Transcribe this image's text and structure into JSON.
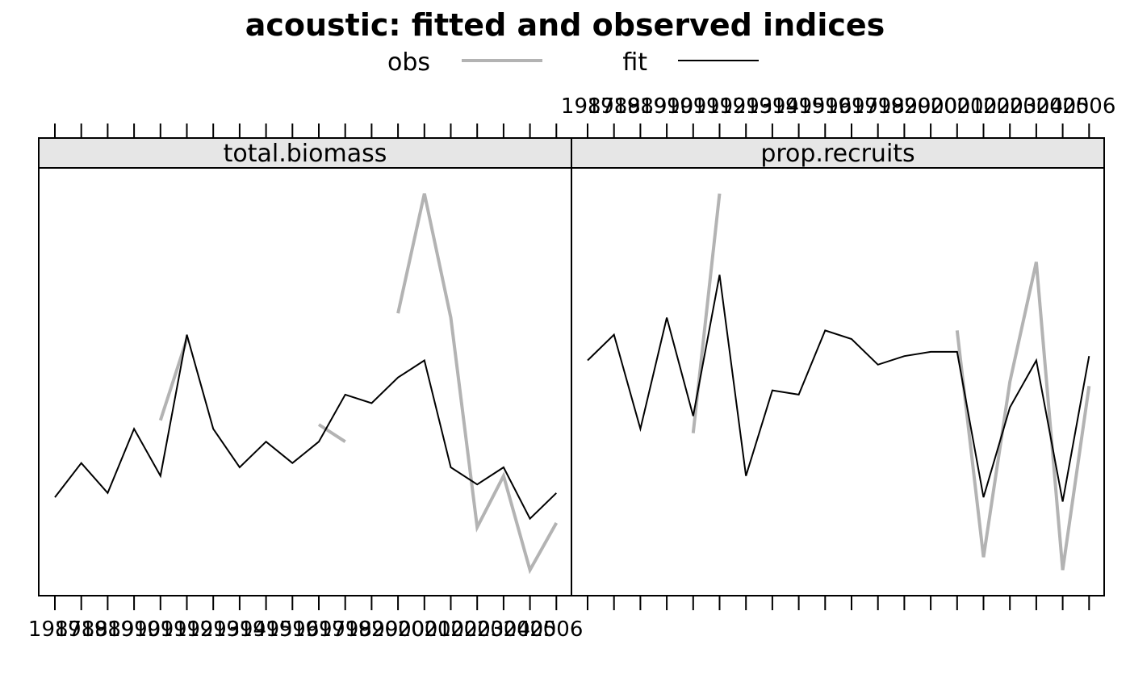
{
  "chart_data": {
    "type": "line",
    "title": "acoustic: fitted and observed indices",
    "legend": {
      "placement": "top",
      "entries": [
        {
          "label": "obs",
          "color": "#b3b3b3"
        },
        {
          "label": "fit",
          "color": "#000000"
        }
      ]
    },
    "x": [
      1987,
      1988,
      1989,
      1990,
      1991,
      1992,
      1993,
      1994,
      1995,
      1996,
      1997,
      1998,
      1999,
      2000,
      2001,
      2002,
      2003,
      2004,
      2005,
      2006
    ],
    "x_tick_labels": [
      "1987",
      "1988",
      "1989",
      "1990",
      "1991",
      "1992",
      "1993",
      "1994",
      "1995",
      "1996",
      "1997",
      "1998",
      "1999",
      "2000",
      "2001",
      "2002",
      "2003",
      "2004",
      "2005",
      "2006"
    ],
    "grid": false,
    "panels": [
      {
        "strip": "total.biomass",
        "ylim": [
          0,
          1
        ],
        "series": [
          {
            "name": "fit",
            "color": "#000000",
            "values": [
              0.23,
              0.31,
              0.24,
              0.39,
              0.28,
              0.61,
              0.39,
              0.3,
              0.36,
              0.31,
              0.36,
              0.47,
              0.45,
              0.51,
              0.55,
              0.3,
              0.26,
              0.3,
              0.18,
              0.24
            ]
          },
          {
            "name": "obs",
            "color": "#b3b3b3",
            "values": [
              null,
              null,
              null,
              null,
              0.41,
              0.6,
              null,
              null,
              null,
              null,
              0.4,
              0.36,
              null,
              0.66,
              0.94,
              0.65,
              0.16,
              0.28,
              0.06,
              0.17
            ]
          }
        ]
      },
      {
        "strip": "prop.recruits",
        "ylim": [
          0,
          1
        ],
        "series": [
          {
            "name": "fit",
            "color": "#000000",
            "values": [
              0.55,
              0.61,
              0.39,
              0.65,
              0.42,
              0.75,
              0.28,
              0.48,
              0.47,
              0.62,
              0.6,
              0.54,
              0.56,
              0.57,
              0.57,
              0.23,
              0.44,
              0.55,
              0.22,
              0.56
            ]
          },
          {
            "name": "obs",
            "color": "#b3b3b3",
            "values": [
              null,
              null,
              null,
              null,
              0.38,
              0.94,
              null,
              null,
              null,
              null,
              null,
              null,
              null,
              null,
              0.62,
              0.09,
              0.5,
              0.78,
              0.06,
              0.49
            ]
          }
        ]
      }
    ]
  }
}
